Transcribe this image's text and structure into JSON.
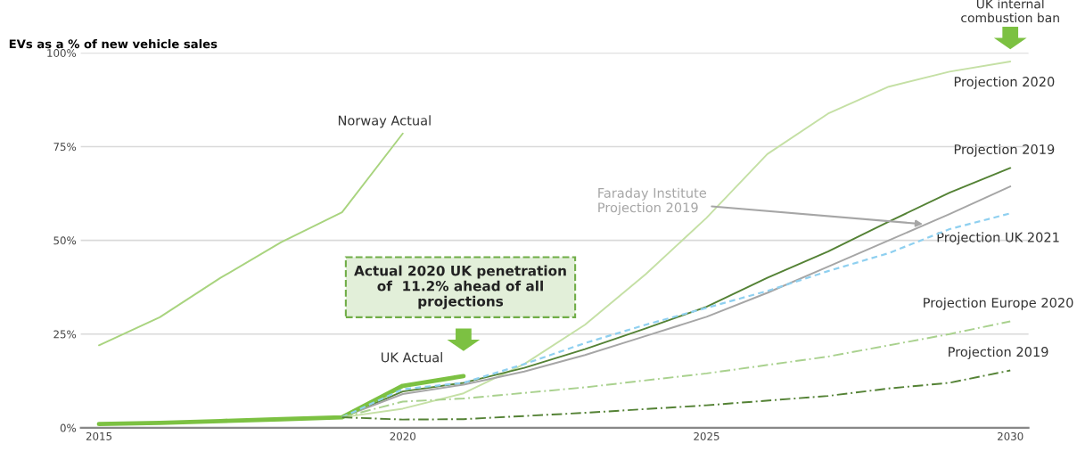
{
  "chart_data": {
    "type": "line",
    "ylabel": "EVs as a % of new vehicle sales",
    "xlim": [
      2014.7,
      2030.3
    ],
    "xticks": [
      2015,
      2020,
      2025,
      2030
    ],
    "ylim": [
      0,
      100
    ],
    "yticks": [
      {
        "value": 0,
        "label": "0%"
      },
      {
        "value": 25,
        "label": "25%"
      },
      {
        "value": 50,
        "label": "50%"
      },
      {
        "value": 75,
        "label": "75%"
      },
      {
        "value": 100,
        "label": "100%"
      }
    ],
    "grid": "y",
    "legend": false,
    "marker": "none",
    "series": [
      {
        "name": "Norway Actual",
        "color": "#a9d47f",
        "line_style": "solid",
        "x": [
          2015,
          2016,
          2017,
          2018,
          2019,
          2020
        ],
        "values": [
          22,
          29.5,
          40,
          49.5,
          57.5,
          78.5
        ]
      },
      {
        "name": "Projection 2020",
        "color": "#c5e0a5",
        "line_style": "solid",
        "x": [
          2019,
          2020,
          2021,
          2022,
          2023,
          2024,
          2025,
          2026,
          2027,
          2028,
          2029,
          2030
        ],
        "values": [
          2.8,
          5.1,
          9.2,
          17,
          27.5,
          41,
          56,
          73,
          83.8,
          91,
          95,
          97.7
        ]
      },
      {
        "name": "Projection 2019",
        "color": "#548235",
        "line_style": "solid",
        "x": [
          2019,
          2020,
          2021,
          2022,
          2023,
          2024,
          2025,
          2026,
          2027,
          2028,
          2029,
          2030
        ],
        "values": [
          2.8,
          9.7,
          12,
          16,
          21,
          26.5,
          32.3,
          40,
          47,
          55,
          62.7,
          69.3
        ]
      },
      {
        "name": "Faraday Institute Projection 2019",
        "color": "#a6a6a6",
        "line_style": "solid",
        "x": [
          2019,
          2020,
          2021,
          2022,
          2023,
          2024,
          2025,
          2026,
          2027,
          2028,
          2029,
          2030
        ],
        "values": [
          2.8,
          9,
          11.5,
          15,
          19.4,
          24.5,
          29.6,
          36,
          43,
          50,
          57,
          64.4
        ]
      },
      {
        "name": "Projection UK 2021",
        "color": "#8fd0f0",
        "line_style": "dashed",
        "x": [
          2019,
          2020,
          2021,
          2022,
          2023,
          2024,
          2025,
          2026,
          2027,
          2028,
          2029,
          2030
        ],
        "values": [
          2.8,
          10.3,
          12,
          17,
          22.6,
          27.5,
          32,
          36.5,
          41.8,
          46.6,
          53,
          57.2
        ]
      },
      {
        "name": "Projection Europe 2020",
        "color": "#a9d18e",
        "line_style": "dashdot",
        "x": [
          2019,
          2020,
          2021,
          2023,
          2025,
          2027,
          2028,
          2029,
          2030
        ],
        "values": [
          2.8,
          7,
          7.8,
          10.8,
          14.5,
          19,
          22,
          25,
          28.4
        ]
      },
      {
        "name": "Projection 2019",
        "color": "#548235",
        "line_style": "dashdot",
        "x": [
          2019,
          2020,
          2021,
          2023,
          2025,
          2027,
          2028,
          2029,
          2030
        ],
        "values": [
          2.8,
          2.2,
          2.3,
          4,
          6,
          8.5,
          10.5,
          12,
          15.3
        ]
      },
      {
        "name": "UK Actual",
        "color": "#7cc142",
        "line_style": "solid",
        "x": [
          2015,
          2016,
          2017,
          2018,
          2019,
          2020,
          2021
        ],
        "values": [
          1,
          1.3,
          1.8,
          2.3,
          2.8,
          11.2,
          13.8
        ]
      }
    ],
    "annotations": [
      "Actual 2020 UK penetration\nof  11.2% ahead of all\nprojections",
      "UK internal\ncombustion ban"
    ]
  }
}
